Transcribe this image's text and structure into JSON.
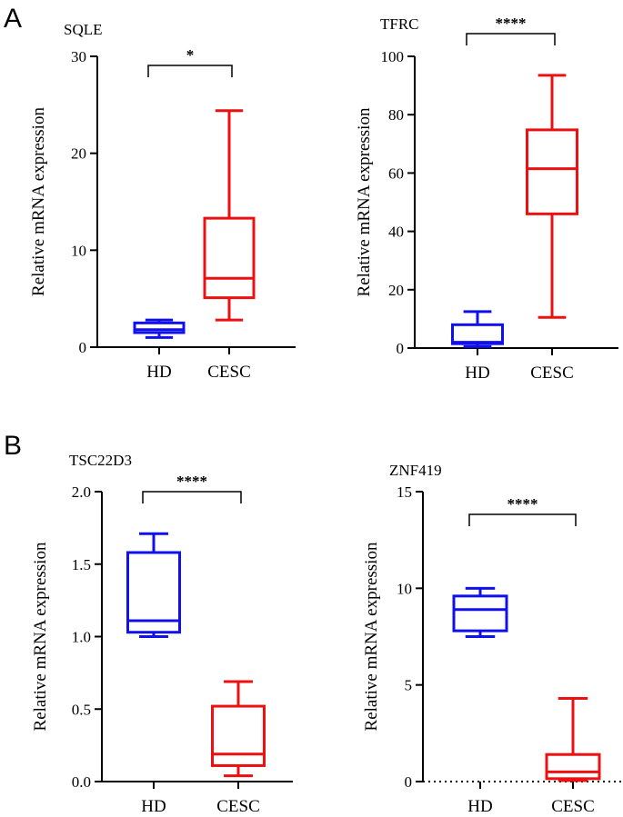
{
  "panels": [
    {
      "letter": "A"
    },
    {
      "letter": "B"
    }
  ],
  "colors": {
    "HD": "#1010ee",
    "CESC": "#ee1010",
    "axis": "#000000"
  },
  "chart_data": [
    {
      "type": "box",
      "panel": "A",
      "title": "SQLE",
      "ylabel": "Relative mRNA expression",
      "ylim": [
        0,
        30
      ],
      "yticks": [
        0,
        10,
        20,
        30
      ],
      "categories": [
        "HD",
        "CESC"
      ],
      "boxes": [
        {
          "name": "HD",
          "min": 1.0,
          "q1": 1.5,
          "median": 1.8,
          "q3": 2.5,
          "max": 2.8
        },
        {
          "name": "CESC",
          "min": 2.8,
          "q1": 5.1,
          "median": 7.1,
          "q3": 13.3,
          "max": 24.4
        }
      ],
      "significance": "*",
      "dotted_baseline": false
    },
    {
      "type": "box",
      "panel": "A",
      "title": "TFRC",
      "ylabel": "Relative mRNA expression",
      "ylim": [
        0,
        100
      ],
      "yticks": [
        0,
        20,
        40,
        60,
        80,
        100
      ],
      "categories": [
        "HD",
        "CESC"
      ],
      "boxes": [
        {
          "name": "HD",
          "min": 0.5,
          "q1": 1.5,
          "median": 2.0,
          "q3": 8.0,
          "max": 12.5
        },
        {
          "name": "CESC",
          "min": 10.5,
          "q1": 46.0,
          "median": 61.5,
          "q3": 74.8,
          "max": 93.5
        }
      ],
      "significance": "****",
      "dotted_baseline": false
    },
    {
      "type": "box",
      "panel": "B",
      "title": "TSC22D3",
      "ylabel": "Relative mRNA expression",
      "ylim": [
        0,
        2.0
      ],
      "yticks": [
        "0.0",
        "0.5",
        "1.0",
        "1.5",
        "2.0"
      ],
      "categories": [
        "HD",
        "CESC"
      ],
      "boxes": [
        {
          "name": "HD",
          "min": 1.0,
          "q1": 1.03,
          "median": 1.11,
          "q3": 1.58,
          "max": 1.71
        },
        {
          "name": "CESC",
          "min": 0.04,
          "q1": 0.11,
          "median": 0.19,
          "q3": 0.52,
          "max": 0.69
        }
      ],
      "significance": "****",
      "dotted_baseline": false
    },
    {
      "type": "box",
      "panel": "B",
      "title": "ZNF419",
      "ylabel": "Relative mRNA expression",
      "ylim": [
        0,
        15
      ],
      "yticks": [
        0,
        5,
        10,
        15
      ],
      "categories": [
        "HD",
        "CESC"
      ],
      "boxes": [
        {
          "name": "HD",
          "min": 7.5,
          "q1": 7.8,
          "median": 8.9,
          "q3": 9.6,
          "max": 10.0
        },
        {
          "name": "CESC",
          "min": 0.05,
          "q1": 0.15,
          "median": 0.5,
          "q3": 1.4,
          "max": 4.3
        }
      ],
      "significance": "****",
      "dotted_baseline": true
    }
  ]
}
